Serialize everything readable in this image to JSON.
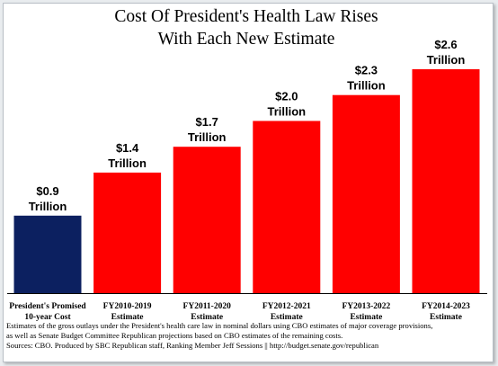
{
  "chart_data": {
    "type": "bar",
    "title": [
      "Cost Of President's Health Law Rises",
      "With Each New Estimate"
    ],
    "categories": [
      [
        "President's Promised",
        "10-year Cost"
      ],
      [
        "FY2010-2019",
        "Estimate"
      ],
      [
        "FY2011-2020",
        "Estimate"
      ],
      [
        "FY2012-2021",
        "Estimate"
      ],
      [
        "FY2013-2022",
        "Estimate"
      ],
      [
        "FY2014-2023",
        "Estimate"
      ]
    ],
    "values": [
      0.9,
      1.4,
      1.7,
      2.0,
      2.3,
      2.6
    ],
    "data_labels": [
      [
        "$0.9",
        "Trillion"
      ],
      [
        "$1.4",
        "Trillion"
      ],
      [
        "$1.7",
        "Trillion"
      ],
      [
        "$2.0",
        "Trillion"
      ],
      [
        "$2.3",
        "Trillion"
      ],
      [
        "$2.6",
        "Trillion"
      ]
    ],
    "ylim": [
      0,
      2.6
    ],
    "grid": false,
    "legend": "none",
    "colors": [
      "#0c2060",
      "#ff0000",
      "#ff0000",
      "#ff0000",
      "#ff0000",
      "#ff0000"
    ]
  },
  "footnote": [
    "Estimates of the gross outlays under the President's health care law in nominal dollars using CBO estimates of major coverage provisions,",
    "as well as Senate Budget Committee Republican projections based on CBO estimates of the remaining costs.",
    "Sources: CBO. Produced by SBC Republican staff, Ranking Member Jeff Sessions || http://budget.senate.gov/republican"
  ]
}
